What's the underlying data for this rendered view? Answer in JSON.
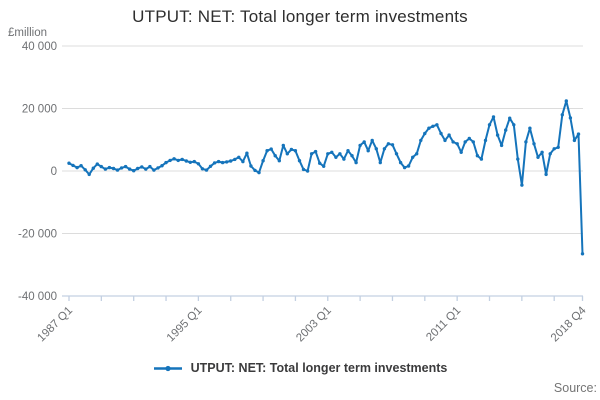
{
  "title": "UTPUT: NET: Total longer term investments",
  "y_axis": {
    "unit_label": "£million",
    "tick_labels": [
      "40 000",
      "20 000",
      "0",
      "-20 000",
      "-40 000"
    ]
  },
  "legend": {
    "label": "UTPUT: NET: Total longer term investments"
  },
  "source_label": "Source:",
  "colors": {
    "line": "#1574bb",
    "grid": "#dcdcdc",
    "axis": "#c3d0e2",
    "tick_text": "#6e7073",
    "title_text": "#2e2e2e"
  },
  "chart_data": {
    "type": "line",
    "title": "UTPUT: NET: Total longer term investments",
    "ylabel": "£million",
    "x_start": "1987 Q1",
    "x_end": "2018 Q4",
    "frequency": "quarterly",
    "n_points": 128,
    "ylim": [
      -40000,
      40000
    ],
    "y_gridlines": [
      40000,
      20000,
      0,
      -20000,
      -40000
    ],
    "x_tick_every_quarters": 8,
    "x_major_labels": [
      {
        "index": 0,
        "label": "1987 Q1"
      },
      {
        "index": 32,
        "label": "1995 Q1"
      },
      {
        "index": 64,
        "label": "2003 Q1"
      },
      {
        "index": 96,
        "label": "2011 Q1"
      },
      {
        "index": 127,
        "label": "2018 Q4"
      }
    ],
    "legend_position": "bottom",
    "grid": true,
    "series": [
      {
        "name": "UTPUT: NET: Total longer term investments",
        "values": [
          2500,
          1800,
          1100,
          1700,
          400,
          -1100,
          900,
          2200,
          1400,
          600,
          1100,
          800,
          300,
          1000,
          1400,
          600,
          100,
          800,
          1300,
          600,
          1400,
          300,
          1000,
          1700,
          2700,
          3400,
          3900,
          3400,
          3700,
          3200,
          2800,
          3000,
          2300,
          700,
          300,
          1500,
          2600,
          3000,
          2700,
          2900,
          3200,
          3700,
          4400,
          3000,
          5700,
          1600,
          200,
          -500,
          3300,
          6500,
          7000,
          4900,
          3300,
          8200,
          5500,
          6900,
          6500,
          3300,
          500,
          0,
          5500,
          6200,
          2500,
          1500,
          5500,
          6000,
          4400,
          5500,
          3800,
          6500,
          4900,
          2700,
          8200,
          9300,
          6500,
          9800,
          7100,
          2700,
          7100,
          8700,
          8400,
          5500,
          2700,
          1100,
          1600,
          4400,
          5500,
          9800,
          12000,
          13700,
          14300,
          14800,
          12000,
          9800,
          11500,
          9300,
          8700,
          6000,
          9300,
          10400,
          9300,
          4900,
          3800,
          9800,
          14800,
          17300,
          11500,
          8200,
          13100,
          16900,
          14800,
          3800,
          -4500,
          9300,
          13700,
          8700,
          4400,
          6000,
          -1100,
          5500,
          7100,
          7600,
          18000,
          22400,
          17000,
          9800,
          11800,
          -26500
        ]
      }
    ]
  }
}
